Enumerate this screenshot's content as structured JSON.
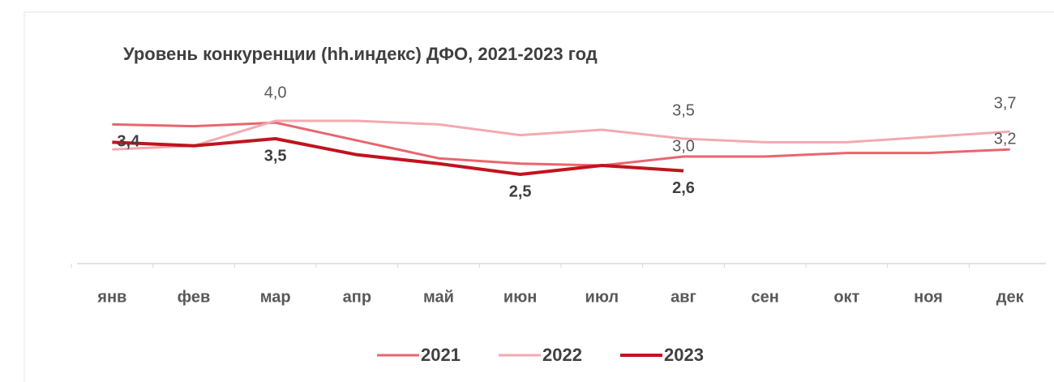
{
  "chart_data": {
    "type": "line",
    "title": "Уровень конкуренции (hh.индекс) ДФО, 2021-2023 год",
    "categories": [
      "янв",
      "фев",
      "мар",
      "апр",
      "май",
      "июн",
      "июл",
      "авг",
      "сен",
      "окт",
      "ноя",
      "дек"
    ],
    "ylim": [
      0,
      4.5
    ],
    "series": [
      {
        "name": "2021",
        "color": "#e8666e",
        "values": [
          3.9,
          3.85,
          3.95,
          3.45,
          2.95,
          2.8,
          2.75,
          3.0,
          3.0,
          3.1,
          3.1,
          3.2
        ],
        "value_labels": [
          null,
          null,
          null,
          null,
          null,
          null,
          null,
          "3,0",
          null,
          null,
          null,
          "3,2"
        ]
      },
      {
        "name": "2022",
        "color": "#f2aab0",
        "values": [
          3.2,
          3.3,
          4.0,
          4.0,
          3.9,
          3.6,
          3.75,
          3.5,
          3.4,
          3.4,
          3.55,
          3.7
        ],
        "value_labels": [
          null,
          null,
          "4,0",
          null,
          null,
          null,
          null,
          "3,5",
          null,
          null,
          null,
          "3,7"
        ]
      },
      {
        "name": "2023",
        "color": "#c0141e",
        "values": [
          3.4,
          3.3,
          3.5,
          3.05,
          2.8,
          2.5,
          2.75,
          2.6,
          null,
          null,
          null,
          null
        ],
        "value_labels": [
          "3,4",
          null,
          "3,5",
          null,
          null,
          "2,5",
          null,
          "2,6",
          null,
          null,
          null,
          null
        ]
      }
    ]
  }
}
